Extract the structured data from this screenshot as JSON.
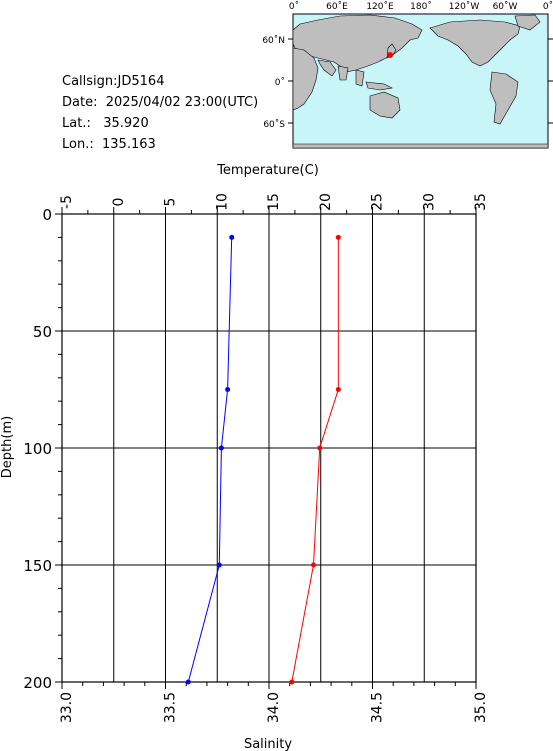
{
  "station": {
    "callsign_label": "Callsign:",
    "callsign": "JD5164",
    "date_label": "Date:",
    "date": "2025/04/02 23:00(UTC)",
    "lat_label": "Lat.:",
    "lat": "35.920",
    "lon_label": "Lon.:",
    "lon": "135.163"
  },
  "map": {
    "top_labels": [
      "0˚",
      "60˚E",
      "120˚E",
      "180˚",
      "120˚W",
      "60˚W",
      "0˚"
    ],
    "left_labels": [
      "60˚N",
      "0˚",
      "60˚S"
    ],
    "ocean_color": "#c8f5f8",
    "land_color": "#bebebe",
    "marker_color": "#ff0000"
  },
  "chart_data": {
    "type": "line",
    "title": "",
    "ylabel": "Depth(m)",
    "ylim": [
      0,
      200
    ],
    "y_inverted": true,
    "yticks": [
      "0",
      "50",
      "100",
      "150",
      "200"
    ],
    "top_axis": {
      "label": "Temperature(C)",
      "lim": [
        -5,
        35
      ],
      "ticks": [
        "-5",
        "0",
        "5",
        "10",
        "15",
        "20",
        "25",
        "30",
        "35"
      ]
    },
    "bottom_axis": {
      "label": "Salinity",
      "lim": [
        33.0,
        35.0
      ],
      "ticks": [
        "33.0",
        "33.5",
        "34.0",
        "34.5",
        "35.0"
      ]
    },
    "grid": true,
    "series": [
      {
        "quantity": "temperature",
        "axis": "top",
        "color": "#ff0000",
        "points": [
          {
            "value": 21.7,
            "depth": 10
          },
          {
            "value": 21.7,
            "depth": 75
          },
          {
            "value": 19.9,
            "depth": 100
          },
          {
            "value": 19.3,
            "depth": 150
          },
          {
            "value": 17.2,
            "depth": 200
          }
        ]
      },
      {
        "quantity": "salinity",
        "axis": "bottom",
        "color": "#0000ff",
        "points": [
          {
            "value": 33.82,
            "depth": 10
          },
          {
            "value": 33.8,
            "depth": 75
          },
          {
            "value": 33.77,
            "depth": 100
          },
          {
            "value": 33.76,
            "depth": 150
          },
          {
            "value": 33.61,
            "depth": 200
          }
        ]
      }
    ]
  }
}
